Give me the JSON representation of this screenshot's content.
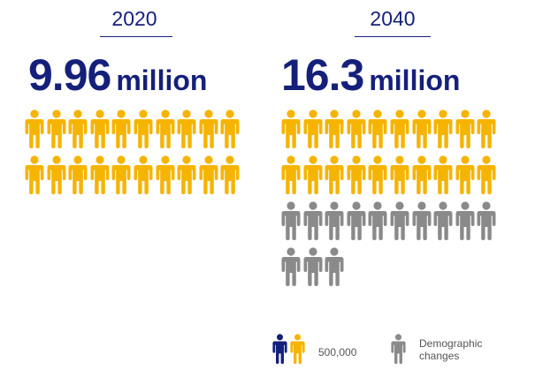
{
  "colors": {
    "navy": "#15207a",
    "gold": "#f5b400",
    "grey": "#8a8a8a"
  },
  "chart_data": {
    "type": "pictogram",
    "unit_label": "500,000",
    "columns": [
      {
        "year": "2020",
        "value": "9.96",
        "unit": "million",
        "base_icons": 20,
        "demographic_icons": 0
      },
      {
        "year": "2040",
        "value": "16.3",
        "unit": "million",
        "base_icons": 20,
        "demographic_icons": 13
      }
    ],
    "legend": [
      {
        "label": "500,000",
        "icon": "person-icon-navy-gold"
      },
      {
        "label": "Demographic changes",
        "icon": "person-icon-grey"
      }
    ]
  }
}
